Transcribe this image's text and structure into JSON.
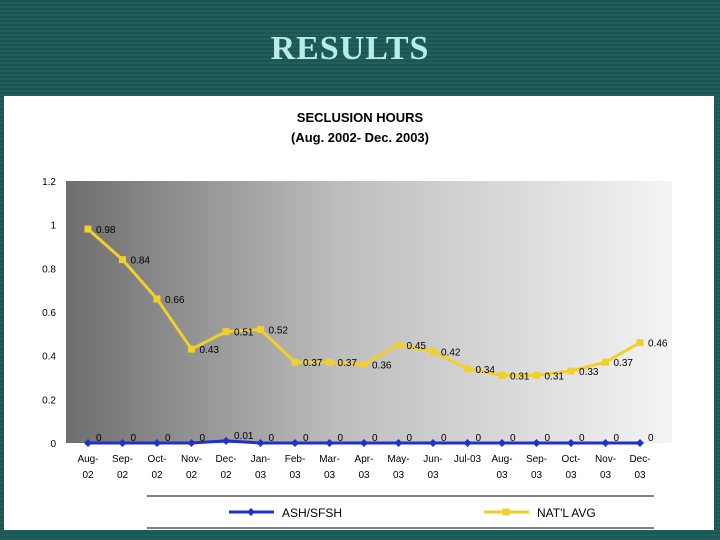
{
  "slide": {
    "title": "RESULTS"
  },
  "chart_data": {
    "type": "line",
    "title": "SECLUSION HOURS",
    "subtitle": "(Aug. 2002- Dec. 2003)",
    "categories": [
      [
        "Aug-",
        "02"
      ],
      [
        "Sep-",
        "02"
      ],
      [
        "Oct-",
        "02"
      ],
      [
        "Nov-",
        "02"
      ],
      [
        "Dec-",
        "02"
      ],
      [
        "Jan-",
        "03"
      ],
      [
        "Feb-",
        "03"
      ],
      [
        "Mar-",
        "03"
      ],
      [
        "Apr-",
        "03"
      ],
      [
        "May-",
        "03"
      ],
      [
        "Jun-",
        "03"
      ],
      [
        "Jul-03",
        ""
      ],
      [
        "Aug-",
        "03"
      ],
      [
        "Sep-",
        "03"
      ],
      [
        "Oct-",
        "03"
      ],
      [
        "Nov-",
        "03"
      ],
      [
        "Dec-",
        "03"
      ]
    ],
    "ylim": [
      0,
      1.2
    ],
    "yticks": [
      "0",
      "0.2",
      "0.4",
      "0.6",
      "0.8",
      "1",
      "1.2"
    ],
    "series": [
      {
        "name": "ASH/SFSH",
        "color": "#1f2fd0",
        "marker": "diamond",
        "values": [
          0,
          0,
          0,
          0,
          0.01,
          0,
          0,
          0,
          0,
          0,
          0,
          0,
          0,
          0,
          0,
          0,
          0
        ],
        "labels": [
          "0",
          "0",
          "0",
          "0",
          "0.01",
          "0",
          "0",
          "0",
          "0",
          "0",
          "0",
          "0",
          "0",
          "0",
          "0",
          "0",
          "0"
        ]
      },
      {
        "name": "NAT'L AVG",
        "color": "#f2cf2b",
        "marker": "square",
        "values": [
          0.98,
          0.84,
          0.66,
          0.43,
          0.51,
          0.52,
          0.37,
          0.37,
          0.36,
          0.45,
          0.42,
          0.34,
          0.31,
          0.31,
          0.33,
          0.37,
          0.46
        ],
        "labels": [
          "0.98",
          "0.84",
          "0.66",
          "0.43",
          "0.51",
          "0.52",
          "0.37",
          "0.37",
          "0.36",
          "0.45",
          "0.42",
          "0.34",
          "0.31",
          "0.31",
          "0.33",
          "0.37",
          "0.46"
        ]
      }
    ],
    "legend_position": "bottom",
    "grid": false
  }
}
